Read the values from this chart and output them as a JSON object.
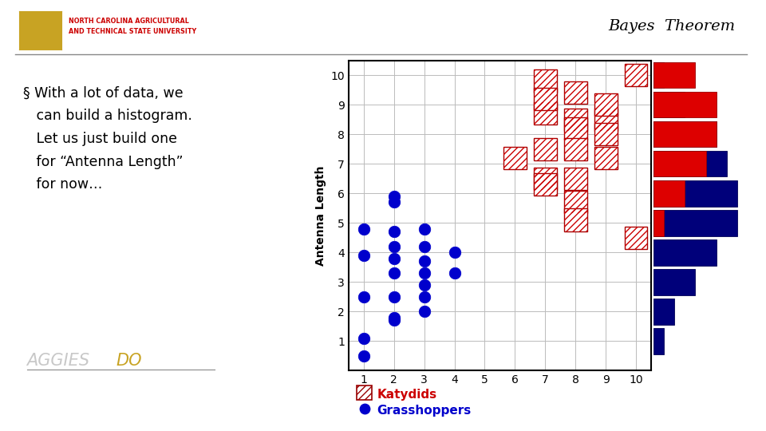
{
  "title": "Bayes  Theorem",
  "ylabel": "Antenna Length",
  "xlim": [
    0.5,
    10.5
  ],
  "ylim": [
    0.0,
    10.5
  ],
  "xticks": [
    1,
    2,
    3,
    4,
    5,
    6,
    7,
    8,
    9,
    10
  ],
  "yticks": [
    1,
    2,
    3,
    4,
    5,
    6,
    7,
    8,
    9,
    10
  ],
  "grasshopper_points": [
    [
      1,
      0.5
    ],
    [
      1,
      1.1
    ],
    [
      1,
      2.5
    ],
    [
      1,
      3.9
    ],
    [
      1,
      4.8
    ],
    [
      2,
      1.7
    ],
    [
      2,
      1.8
    ],
    [
      2,
      2.5
    ],
    [
      2,
      3.3
    ],
    [
      2,
      3.8
    ],
    [
      2,
      4.2
    ],
    [
      2,
      4.7
    ],
    [
      2,
      5.7
    ],
    [
      2,
      5.9
    ],
    [
      3,
      2.0
    ],
    [
      3,
      2.5
    ],
    [
      3,
      2.9
    ],
    [
      3,
      3.3
    ],
    [
      3,
      3.7
    ],
    [
      3,
      4.2
    ],
    [
      3,
      4.8
    ],
    [
      4,
      3.3
    ],
    [
      4,
      4.0
    ]
  ],
  "katydid_points": [
    [
      6,
      7.2
    ],
    [
      7,
      9.8
    ],
    [
      7,
      8.7
    ],
    [
      7,
      9.2
    ],
    [
      7,
      7.5
    ],
    [
      7,
      6.5
    ],
    [
      7,
      6.3
    ],
    [
      8,
      8.5
    ],
    [
      8,
      9.4
    ],
    [
      8,
      8.2
    ],
    [
      8,
      7.5
    ],
    [
      8,
      6.5
    ],
    [
      8,
      5.7
    ],
    [
      8,
      5.1
    ],
    [
      9,
      8.5
    ],
    [
      9,
      9.0
    ],
    [
      9,
      8.0
    ],
    [
      9,
      7.2
    ],
    [
      10,
      10.0
    ],
    [
      10,
      4.5
    ]
  ],
  "grasshopper_hist": [
    1,
    2,
    4,
    6,
    8,
    8,
    7,
    6,
    3,
    1
  ],
  "katydid_hist": [
    0,
    0,
    0,
    0,
    1,
    3,
    5,
    6,
    6,
    4
  ],
  "bg_color": "#ffffff",
  "scatter_blue": "#0000cc",
  "hist_red": "#dd0000",
  "hist_blue": "#00007a",
  "grid_color": "#bbbbbb",
  "ncsu_gold": "#c8a323",
  "ncsu_red": "#cc0000",
  "text_gray": "#cccccc"
}
